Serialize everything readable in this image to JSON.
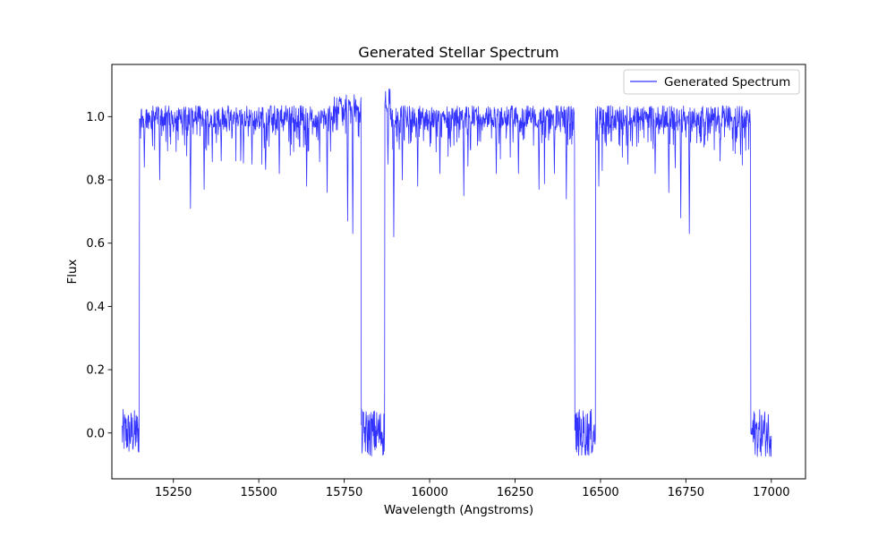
{
  "chart_data": {
    "type": "line",
    "title": "Generated Stellar Spectrum",
    "xlabel": "Wavelength (Angstroms)",
    "ylabel": "Flux",
    "xlim": [
      15070,
      17100
    ],
    "ylim": [
      -0.145,
      1.165
    ],
    "x_ticks": [
      15250,
      15500,
      15750,
      16000,
      16250,
      16500,
      16750,
      17000
    ],
    "y_ticks": [
      0.0,
      0.2,
      0.4,
      0.6,
      0.8,
      1.0
    ],
    "y_tick_format": 1,
    "grid": false,
    "legend_position": "top-right",
    "line_color": "#3333ff",
    "series": [
      {
        "name": "Generated Spectrum",
        "x_range": [
          15100,
          17000
        ],
        "gap_regions": [
          [
            15100,
            15150
          ],
          [
            15800,
            15868
          ],
          [
            16425,
            16485
          ],
          [
            16940,
            17000
          ]
        ],
        "gap_level": 0.0,
        "gap_noise": 0.075,
        "continuum": 1.0,
        "continuum_noise": 0.035,
        "strong_absorption_lines": [
          {
            "x": 15165,
            "depth": 0.16
          },
          {
            "x": 15210,
            "depth": 0.2
          },
          {
            "x": 15300,
            "depth": 0.29
          },
          {
            "x": 15340,
            "depth": 0.23
          },
          {
            "x": 15390,
            "depth": 0.14
          },
          {
            "x": 15480,
            "depth": 0.15
          },
          {
            "x": 15560,
            "depth": 0.18
          },
          {
            "x": 15640,
            "depth": 0.22
          },
          {
            "x": 15700,
            "depth": 0.24
          },
          {
            "x": 15760,
            "depth": 0.33
          },
          {
            "x": 15775,
            "depth": 0.37
          },
          {
            "x": 15878,
            "depth": 0.15
          },
          {
            "x": 15895,
            "depth": 0.38
          },
          {
            "x": 15920,
            "depth": 0.2
          },
          {
            "x": 15965,
            "depth": 0.22
          },
          {
            "x": 16030,
            "depth": 0.18
          },
          {
            "x": 16100,
            "depth": 0.25
          },
          {
            "x": 16195,
            "depth": 0.18
          },
          {
            "x": 16260,
            "depth": 0.18
          },
          {
            "x": 16320,
            "depth": 0.23
          },
          {
            "x": 16365,
            "depth": 0.18
          },
          {
            "x": 16400,
            "depth": 0.26
          },
          {
            "x": 16495,
            "depth": 0.22
          },
          {
            "x": 16580,
            "depth": 0.15
          },
          {
            "x": 16660,
            "depth": 0.18
          },
          {
            "x": 16700,
            "depth": 0.24
          },
          {
            "x": 16735,
            "depth": 0.32
          },
          {
            "x": 16760,
            "depth": 0.37
          },
          {
            "x": 16850,
            "depth": 0.14
          },
          {
            "x": 16910,
            "depth": 0.12
          }
        ]
      }
    ]
  }
}
